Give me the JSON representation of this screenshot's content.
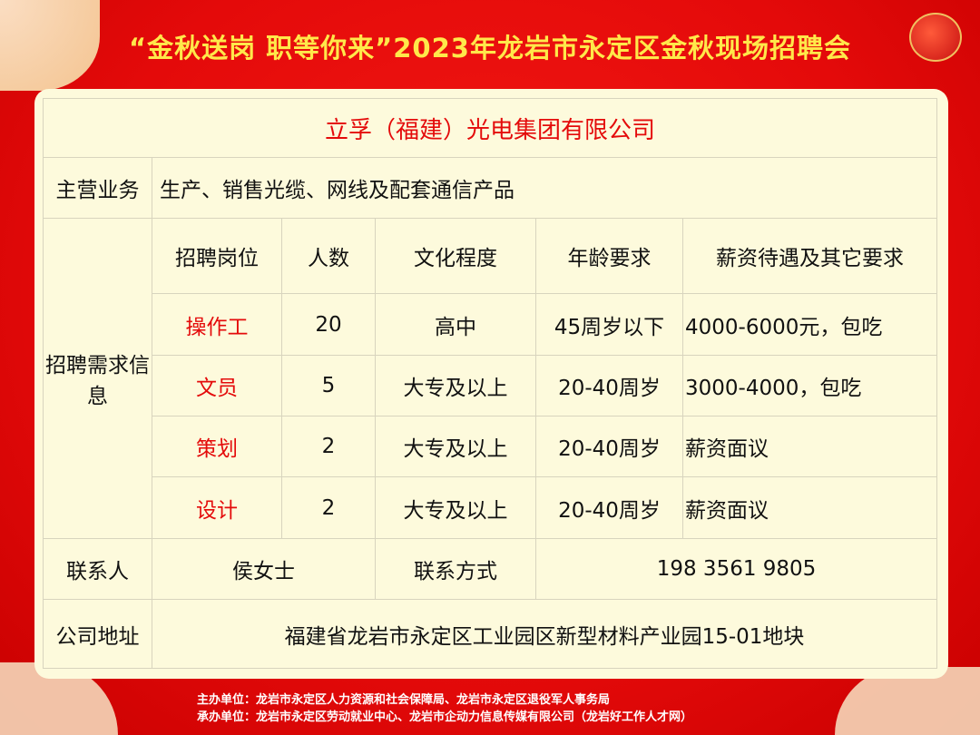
{
  "title": "“金秋送岗  职等你来”2023年龙岩市永定区金秋现场招聘会",
  "company": "立孚（福建）光电集团有限公司",
  "business": {
    "label": "主营业务",
    "value": "生产、销售光缆、网线及配套通信产品"
  },
  "recruit": {
    "label": "招聘需求信息",
    "headers": [
      "招聘岗位",
      "人数",
      "文化程度",
      "年龄要求",
      "薪资待遇及其它要求"
    ],
    "rows": [
      [
        "操作工",
        "20",
        "高中",
        "45周岁以下",
        "4000-6000元，包吃"
      ],
      [
        "文员",
        "5",
        "大专及以上",
        "20-40周岁",
        "3000-4000，包吃"
      ],
      [
        "策划",
        "2",
        "大专及以上",
        "20-40周岁",
        "薪资面议"
      ],
      [
        "设计",
        "2",
        "大专及以上",
        "20-40周岁",
        "薪资面议"
      ]
    ]
  },
  "contact": {
    "label": "联系人",
    "name": "侯女士",
    "phone_label": "联系方式",
    "phone": "198 3561 9805"
  },
  "address": {
    "label": "公司地址",
    "value": "福建省龙岩市永定区工业园区新型材料产业园15-01地块"
  },
  "footer": {
    "host": "主办单位：龙岩市永定区人力资源和社会保障局、龙岩市永定区退役军人事务局",
    "organizer": "承办单位：龙岩市永定区劳动就业中心、龙岩市企动力信息传媒有限公司（龙岩好工作人才网）"
  },
  "colors": {
    "background": "#e40a0a",
    "title": "#ffe84a",
    "card": "#fdfadc",
    "position": "#e40b0b"
  }
}
